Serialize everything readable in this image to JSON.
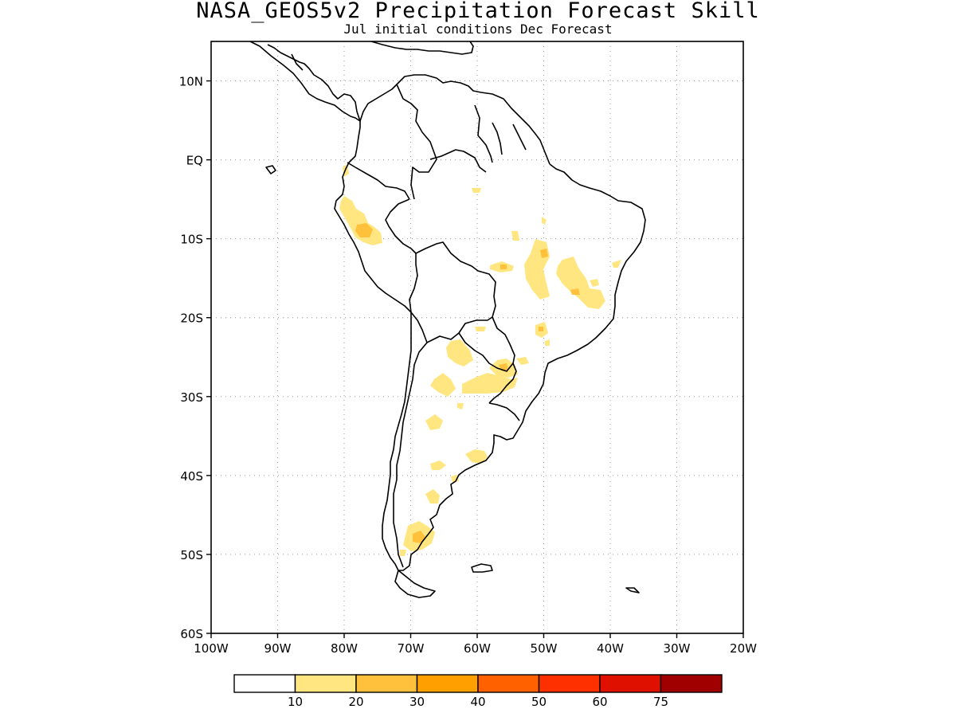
{
  "title": "NASA_GEOS5v2 Precipitation Forecast Skill",
  "subtitle": "Jul initial conditions  Dec Forecast",
  "map": {
    "lon_range": [
      -100,
      -20
    ],
    "lat_range": [
      -60,
      15
    ],
    "grid": true,
    "y_ticks": [
      {
        "lat": 10,
        "label": "10N"
      },
      {
        "lat": 0,
        "label": "EQ"
      },
      {
        "lat": -10,
        "label": "10S"
      },
      {
        "lat": -20,
        "label": "20S"
      },
      {
        "lat": -30,
        "label": "30S"
      },
      {
        "lat": -40,
        "label": "40S"
      },
      {
        "lat": -50,
        "label": "50S"
      },
      {
        "lat": -60,
        "label": "60S"
      }
    ],
    "x_ticks": [
      {
        "lon": -100,
        "label": "100W"
      },
      {
        "lon": -90,
        "label": "90W"
      },
      {
        "lon": -80,
        "label": "80W"
      },
      {
        "lon": -70,
        "label": "70W"
      },
      {
        "lon": -60,
        "label": "60W"
      },
      {
        "lon": -50,
        "label": "50W"
      },
      {
        "lon": -40,
        "label": "40W"
      },
      {
        "lon": -30,
        "label": "30W"
      },
      {
        "lon": -20,
        "label": "20W"
      }
    ],
    "colors": {
      "coast": "#000000",
      "grid": "#9a9a9a",
      "level_10_20": "#ffe680",
      "level_20_30": "#ffc03c"
    }
  },
  "colorbar": {
    "colors": [
      "#ffffff",
      "#ffe680",
      "#ffc03c",
      "#ffa000",
      "#ff6000",
      "#ff3000",
      "#e01000",
      "#a00000"
    ],
    "labels": [
      "10",
      "20",
      "30",
      "40",
      "50",
      "60",
      "75"
    ]
  }
}
